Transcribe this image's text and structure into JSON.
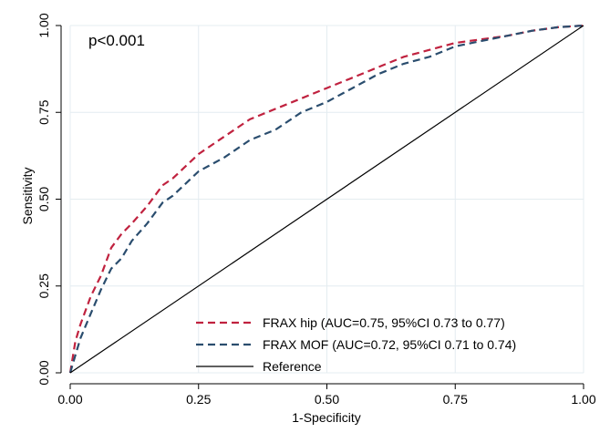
{
  "chart_data": {
    "type": "line",
    "title": "",
    "xlabel": "1-Specificity",
    "ylabel": "Sensitivity",
    "xlim": [
      0,
      1
    ],
    "ylim": [
      0,
      1
    ],
    "xticks": [
      "0.00",
      "0.25",
      "0.50",
      "0.75",
      "1.00"
    ],
    "yticks": [
      "0.00",
      "0.25",
      "0.50",
      "0.75",
      "1.00"
    ],
    "grid": true,
    "legend_position": "bottom-right",
    "annotation": "p<0.001",
    "series": [
      {
        "name": "FRAX hip (AUC=0.75, 95%CI 0.73 to 0.77)",
        "color": "#c0223f",
        "style": "dashed",
        "x": [
          0,
          0.01,
          0.02,
          0.04,
          0.06,
          0.08,
          0.1,
          0.12,
          0.15,
          0.18,
          0.2,
          0.25,
          0.3,
          0.35,
          0.4,
          0.45,
          0.5,
          0.55,
          0.6,
          0.65,
          0.7,
          0.75,
          0.8,
          0.85,
          0.9,
          0.95,
          1.0
        ],
        "y": [
          0,
          0.09,
          0.14,
          0.22,
          0.28,
          0.36,
          0.4,
          0.43,
          0.48,
          0.54,
          0.56,
          0.63,
          0.68,
          0.73,
          0.76,
          0.79,
          0.82,
          0.85,
          0.88,
          0.91,
          0.93,
          0.95,
          0.96,
          0.97,
          0.985,
          0.995,
          1.0
        ]
      },
      {
        "name": "FRAX MOF (AUC=0.72, 95%CI 0.71 to 0.74)",
        "color": "#2a4d6e",
        "style": "dashed",
        "x": [
          0,
          0.01,
          0.02,
          0.04,
          0.06,
          0.08,
          0.1,
          0.12,
          0.15,
          0.18,
          0.2,
          0.25,
          0.3,
          0.35,
          0.4,
          0.45,
          0.5,
          0.55,
          0.6,
          0.65,
          0.7,
          0.75,
          0.8,
          0.85,
          0.9,
          0.95,
          1.0
        ],
        "y": [
          0,
          0.05,
          0.1,
          0.17,
          0.24,
          0.3,
          0.33,
          0.38,
          0.43,
          0.49,
          0.51,
          0.58,
          0.62,
          0.67,
          0.7,
          0.75,
          0.78,
          0.82,
          0.86,
          0.89,
          0.91,
          0.94,
          0.955,
          0.97,
          0.985,
          0.995,
          1.0
        ]
      },
      {
        "name": "Reference",
        "color": "#000000",
        "style": "solid",
        "x": [
          0,
          1
        ],
        "y": [
          0,
          1
        ]
      }
    ]
  }
}
